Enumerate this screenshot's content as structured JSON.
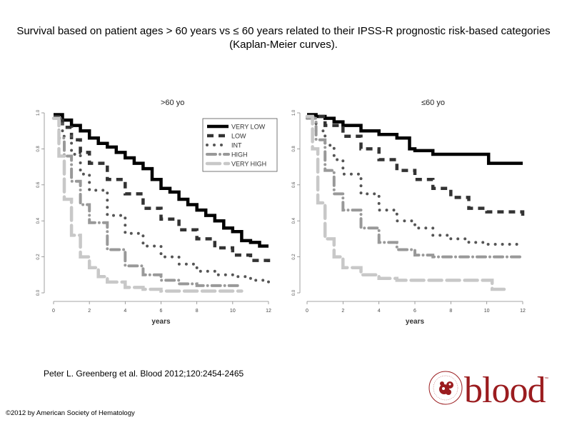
{
  "title": "Survival based on patient ages > 60 years vs ≤ 60 years related to their IPSS-R prognostic risk-based categories (Kaplan-Meier curves).",
  "citation": "Peter L. Greenberg et al. Blood 2012;120:2454-2465",
  "copyright": "©2012 by American Society of Hematology",
  "logo": {
    "text": "blood",
    "tm": "™",
    "color": "#9b1c1f"
  },
  "chart_data": [
    {
      "type": "line",
      "title": ">60 yo",
      "xlabel": "years",
      "ylabel": "",
      "xlim": [
        0,
        12
      ],
      "ylim": [
        0,
        1
      ],
      "xticks": [
        "0",
        "2",
        "4",
        "6",
        "8",
        "10",
        "12"
      ],
      "yticks": [
        "0.0",
        "0.2",
        "0.4",
        "0.6",
        "0.8",
        "1.0"
      ],
      "legend": "top-right",
      "series": [
        {
          "name": "VERY LOW",
          "style": "solid",
          "color": "#000000",
          "x": [
            0,
            0.5,
            1,
            1.5,
            2,
            2.5,
            3,
            3.5,
            4,
            4.5,
            5,
            5.5,
            6,
            6.5,
            7,
            7.5,
            8,
            8.5,
            9,
            9.5,
            10,
            10.5,
            11,
            11.5,
            12
          ],
          "y": [
            0.99,
            0.96,
            0.93,
            0.9,
            0.86,
            0.83,
            0.81,
            0.78,
            0.75,
            0.72,
            0.69,
            0.63,
            0.58,
            0.56,
            0.52,
            0.49,
            0.46,
            0.43,
            0.4,
            0.36,
            0.34,
            0.29,
            0.28,
            0.26,
            0.26
          ]
        },
        {
          "name": "LOW",
          "style": "dashed",
          "color": "#333333",
          "x": [
            0,
            0.5,
            1,
            1.5,
            2,
            3,
            4,
            5,
            6,
            7,
            8,
            9,
            10,
            11,
            12
          ],
          "y": [
            0.98,
            0.92,
            0.85,
            0.78,
            0.72,
            0.63,
            0.55,
            0.47,
            0.41,
            0.35,
            0.3,
            0.25,
            0.21,
            0.18,
            0.15
          ]
        },
        {
          "name": "INT",
          "style": "dotted",
          "color": "#555555",
          "x": [
            0,
            0.5,
            1,
            1.5,
            2,
            3,
            4,
            5,
            6,
            7,
            8,
            9,
            10,
            11,
            12
          ],
          "y": [
            0.97,
            0.87,
            0.77,
            0.66,
            0.57,
            0.43,
            0.33,
            0.26,
            0.2,
            0.16,
            0.12,
            0.1,
            0.09,
            0.07,
            0.06
          ]
        },
        {
          "name": "HIGH",
          "style": "dashdot",
          "color": "#999999",
          "x": [
            0,
            0.3,
            0.6,
            1,
            1.5,
            2,
            3,
            4,
            5,
            6,
            7,
            8,
            9,
            10,
            10.5
          ],
          "y": [
            0.97,
            0.86,
            0.76,
            0.62,
            0.49,
            0.39,
            0.24,
            0.15,
            0.1,
            0.07,
            0.05,
            0.04,
            0.04,
            0.04,
            0.04
          ]
        },
        {
          "name": "VERY HIGH",
          "style": "longdash",
          "color": "#c8c8c8",
          "x": [
            0,
            0.3,
            0.6,
            1,
            1.5,
            2,
            2.5,
            3,
            4,
            5,
            6,
            7,
            8,
            9,
            10,
            10.5
          ],
          "y": [
            0.97,
            0.76,
            0.52,
            0.32,
            0.2,
            0.14,
            0.09,
            0.06,
            0.03,
            0.02,
            0.01,
            0.01,
            0.01,
            0.01,
            0.01,
            0.01
          ]
        }
      ]
    },
    {
      "type": "line",
      "title": "≤60 yo",
      "xlabel": "years",
      "ylabel": "",
      "xlim": [
        0,
        12
      ],
      "ylim": [
        0,
        1
      ],
      "xticks": [
        "0",
        "2",
        "4",
        "6",
        "8",
        "10",
        "12"
      ],
      "yticks": [
        "0.0",
        "0.2",
        "0.4",
        "0.6",
        "0.8",
        "1.0"
      ],
      "series": [
        {
          "name": "VERY LOW",
          "style": "solid",
          "color": "#000000",
          "x": [
            0,
            0.5,
            1,
            1.5,
            2,
            3,
            4,
            5,
            5.5,
            5.7,
            6,
            7,
            8,
            9,
            10,
            10.1,
            11,
            12
          ],
          "y": [
            0.99,
            0.98,
            0.97,
            0.95,
            0.93,
            0.9,
            0.88,
            0.86,
            0.86,
            0.8,
            0.79,
            0.77,
            0.77,
            0.77,
            0.77,
            0.72,
            0.72,
            0.72
          ]
        },
        {
          "name": "LOW",
          "style": "dashed",
          "color": "#333333",
          "x": [
            0,
            1,
            2,
            3,
            4,
            5,
            6,
            7,
            8,
            9,
            10,
            11,
            12
          ],
          "y": [
            0.98,
            0.93,
            0.87,
            0.8,
            0.74,
            0.68,
            0.63,
            0.58,
            0.53,
            0.47,
            0.45,
            0.45,
            0.42
          ]
        },
        {
          "name": "INT",
          "style": "dotted",
          "color": "#555555",
          "x": [
            0,
            0.5,
            1,
            1.5,
            2,
            3,
            4,
            5,
            6,
            7,
            8,
            9,
            10,
            11,
            12
          ],
          "y": [
            0.97,
            0.9,
            0.82,
            0.74,
            0.66,
            0.55,
            0.46,
            0.4,
            0.36,
            0.32,
            0.3,
            0.28,
            0.27,
            0.27,
            0.27
          ]
        },
        {
          "name": "HIGH",
          "style": "dashdot",
          "color": "#999999",
          "x": [
            0,
            0.5,
            1,
            1.5,
            2,
            3,
            4,
            5,
            6,
            7,
            8,
            9,
            10,
            11,
            12
          ],
          "y": [
            0.97,
            0.85,
            0.68,
            0.55,
            0.46,
            0.36,
            0.28,
            0.24,
            0.21,
            0.2,
            0.2,
            0.2,
            0.2,
            0.2,
            0.2
          ]
        },
        {
          "name": "VERY HIGH",
          "style": "longdash",
          "color": "#c8c8c8",
          "x": [
            0,
            0.3,
            0.6,
            1,
            1.5,
            2,
            3,
            4,
            5,
            6,
            7,
            8,
            9,
            10,
            10.3,
            11
          ],
          "y": [
            0.98,
            0.8,
            0.5,
            0.3,
            0.2,
            0.14,
            0.1,
            0.08,
            0.07,
            0.07,
            0.07,
            0.07,
            0.07,
            0.07,
            0.02,
            0.02
          ]
        }
      ]
    }
  ]
}
